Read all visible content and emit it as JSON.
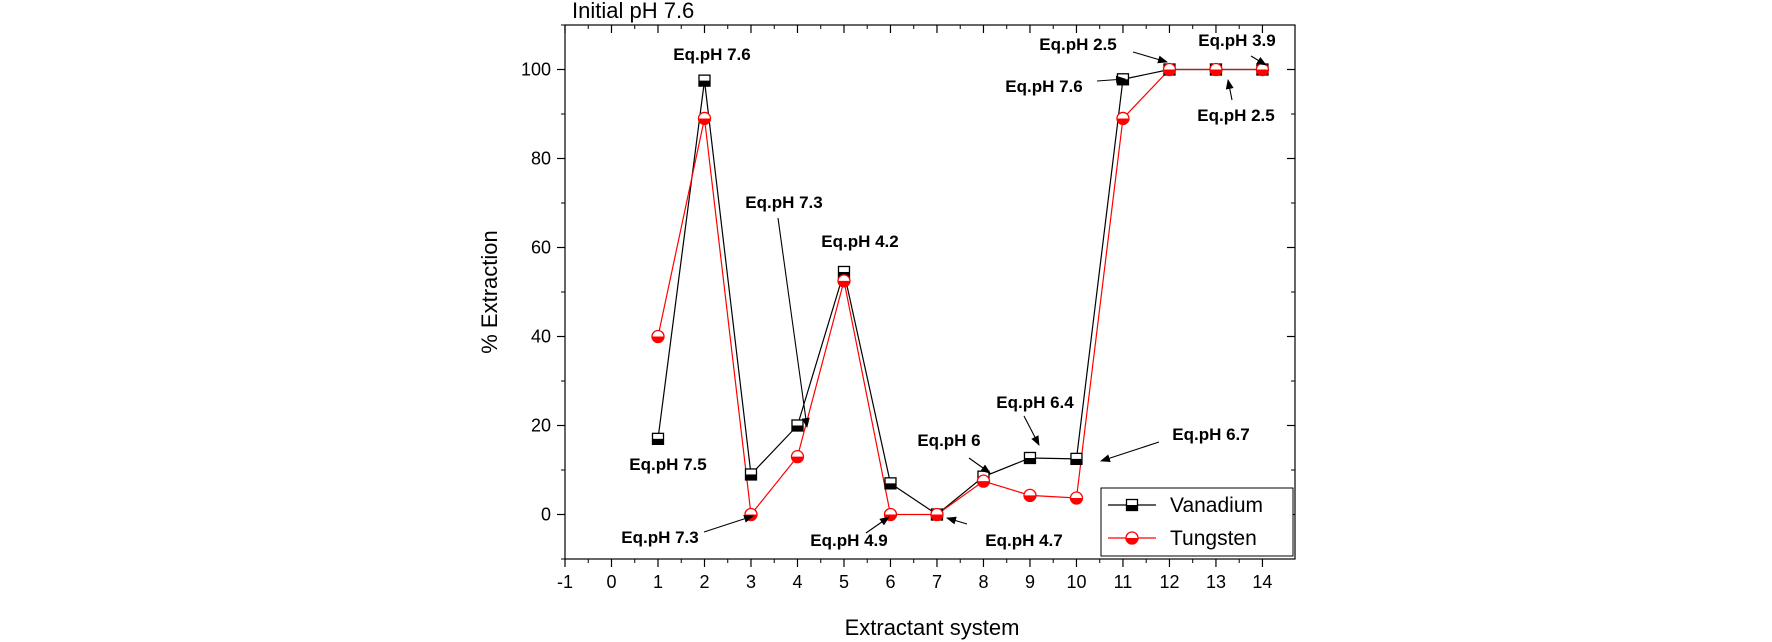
{
  "chart_data": {
    "type": "line",
    "title": "Initial pH 7.6",
    "xlabel": "Extractant system",
    "ylabel": "% Extraction",
    "xlim": [
      -1,
      14.7
    ],
    "ylim": [
      -10,
      110
    ],
    "xticks": [
      -1,
      0,
      1,
      2,
      3,
      4,
      5,
      6,
      7,
      8,
      9,
      10,
      11,
      12,
      13,
      14
    ],
    "yticks": [
      0,
      20,
      40,
      60,
      80,
      100
    ],
    "grid": false,
    "legend_position": "bottom-right",
    "series": [
      {
        "name": "Vanadium",
        "color": "#000000",
        "marker": "half-filled-square",
        "x": [
          1,
          2,
          3,
          4,
          5,
          6,
          7,
          8,
          9,
          10,
          11,
          12,
          13,
          14
        ],
        "y": [
          17,
          97.5,
          9,
          20,
          54.5,
          7,
          0,
          8.5,
          12.7,
          12.5,
          97.8,
          100,
          100,
          100
        ]
      },
      {
        "name": "Tungsten",
        "color": "#ff0000",
        "marker": "half-filled-circle",
        "x": [
          1,
          2,
          3,
          4,
          5,
          6,
          7,
          8,
          9,
          10,
          11,
          12,
          13,
          14
        ],
        "y": [
          40,
          89,
          0,
          13,
          52.5,
          0,
          0,
          7.5,
          4.3,
          3.7,
          89,
          100,
          100,
          100
        ]
      }
    ],
    "annotations": [
      {
        "text": "Eq.pH 7.6",
        "x": 2,
        "y": 97.5
      },
      {
        "text": "Eq.pH 7.5",
        "x": 1,
        "y": 17
      },
      {
        "text": "Eq.pH 7.3",
        "x": 3,
        "y": 0
      },
      {
        "text": "Eq.pH 7.3",
        "x": 4,
        "y": 20
      },
      {
        "text": "Eq.pH 4.2",
        "x": 5,
        "y": 54.5
      },
      {
        "text": "Eq.pH 4.9",
        "x": 6,
        "y": 0
      },
      {
        "text": "Eq.pH 4.7",
        "x": 7,
        "y": 0
      },
      {
        "text": "Eq.pH 6",
        "x": 8,
        "y": 8.5
      },
      {
        "text": "Eq.pH 6.4",
        "x": 9,
        "y": 12.7
      },
      {
        "text": "Eq.pH 6.7",
        "x": 10,
        "y": 12.5
      },
      {
        "text": "Eq.pH 7.6",
        "x": 11,
        "y": 97.8
      },
      {
        "text": "Eq.pH 2.5",
        "x": 12,
        "y": 100
      },
      {
        "text": "Eq.pH 2.5",
        "x": 13,
        "y": 100
      },
      {
        "text": "Eq.pH 3.9",
        "x": 14,
        "y": 100
      }
    ]
  }
}
